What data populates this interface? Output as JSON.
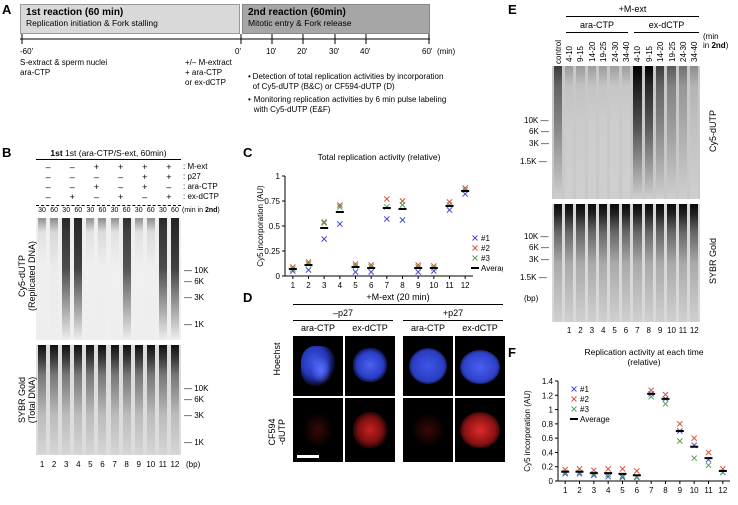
{
  "panels": {
    "a": "A",
    "b": "B",
    "c": "C",
    "d": "D",
    "e": "E",
    "f": "F"
  },
  "panelA": {
    "box1_title": "1st reaction (60 min)",
    "box1_sub": "Replication initiation & Fork stalling",
    "box2_title": "2nd reaction (60min)",
    "box2_sub": "Mitotic entry & Fork release",
    "ticks": [
      "-60'",
      "0'",
      "10'",
      "20'",
      "30'",
      "40'",
      "60'"
    ],
    "unit": "(min)",
    "left_note": [
      "S-extract & sperm nuclei",
      "ara-CTP"
    ],
    "mid_note": [
      "+/– M-extract",
      "+ ara-CTP",
      "or ex-dCTP"
    ],
    "bullets": [
      "Detection of total replication activities by incorporation of Cy5-dUTP (B&C) or CF594-dUTP (D)",
      "Monitoring replication activities by 6 min pulse labeling with Cy5-dUTP (E&F)"
    ],
    "colors": {
      "box1": "#d9d9d9",
      "box2": "#a6a6a6"
    }
  },
  "panelB": {
    "header": "1st (ara-CTP/S-ext, 60min)",
    "row_labels": [
      ": M-ext",
      ": p27",
      ": ara-CTP",
      ": ex-dCTP"
    ],
    "rows": [
      [
        "–",
        "–",
        "+",
        "+",
        "+",
        "+"
      ],
      [
        "–",
        "–",
        "–",
        "–",
        "+",
        "+"
      ],
      [
        "–",
        "–",
        "+",
        "–",
        "+",
        "–"
      ],
      [
        "–",
        "+",
        "–",
        "+",
        "–",
        "+"
      ]
    ],
    "times": [
      "30",
      "60",
      "30",
      "60",
      "30",
      "60",
      "30",
      "60",
      "30",
      "60",
      "30",
      "60"
    ],
    "time_unit_pre": "(min in ",
    "time_unit_bold": "2nd",
    "time_unit_post": ")",
    "gel1_label": [
      "Cy5-dUTP",
      "(Replicated DNA)"
    ],
    "gel2_label": [
      "SYBR Gold",
      "(Total DNA)"
    ],
    "markers1": [
      "10K",
      "6K",
      "3K",
      "1K"
    ],
    "markers2": [
      "10K",
      "6K",
      "3K",
      "1K"
    ],
    "lanes": [
      "1",
      "2",
      "3",
      "4",
      "5",
      "6",
      "7",
      "8",
      "9",
      "10",
      "11",
      "12"
    ],
    "bp": "(bp)",
    "signal": [
      0.05,
      0.1,
      0.9,
      0.95,
      0.05,
      0.08,
      0.05,
      0.85,
      0.05,
      0.08,
      0.9,
      0.95
    ]
  },
  "chart_data": [
    {
      "id": "C",
      "type": "scatter",
      "title": "Total replication activity (relative)",
      "ylabel": "Cy5 incorporation (AU)",
      "xlabel": "",
      "categories": [
        "1",
        "2",
        "3",
        "4",
        "5",
        "6",
        "7",
        "8",
        "9",
        "10",
        "11",
        "12"
      ],
      "ylim": [
        0,
        1
      ],
      "yticks": [
        "0",
        "0.25",
        "0.5",
        "0.75",
        "1"
      ],
      "legend_position": "right",
      "series": [
        {
          "name": "#1",
          "color": "#4a4ad8",
          "marker": "x",
          "values": [
            0.05,
            0.06,
            0.37,
            0.52,
            0.04,
            0.04,
            0.57,
            0.56,
            0.04,
            0.05,
            0.66,
            0.82
          ]
        },
        {
          "name": "#2",
          "color": "#d94f3d",
          "marker": "x",
          "values": [
            0.09,
            0.14,
            0.54,
            0.71,
            0.12,
            0.11,
            0.77,
            0.75,
            0.11,
            0.1,
            0.74,
            0.88
          ]
        },
        {
          "name": "#3",
          "color": "#5aa05a",
          "marker": "x",
          "values": [
            0.07,
            0.12,
            0.53,
            0.69,
            0.1,
            0.09,
            0.69,
            0.71,
            0.09,
            0.08,
            0.71,
            0.86
          ]
        },
        {
          "name": "Average",
          "color": "#000000",
          "marker": "dash",
          "values": [
            0.07,
            0.11,
            0.48,
            0.64,
            0.09,
            0.08,
            0.68,
            0.67,
            0.08,
            0.08,
            0.7,
            0.85
          ]
        }
      ]
    },
    {
      "id": "F",
      "type": "scatter",
      "title": "Replication activity at each time (relative)",
      "ylabel": "Cy5 incorporation (AU)",
      "xlabel": "",
      "categories": [
        "1",
        "2",
        "3",
        "4",
        "5",
        "6",
        "7",
        "8",
        "9",
        "10",
        "11",
        "12"
      ],
      "ylim": [
        0,
        1.4
      ],
      "yticks": [
        "0",
        "0.2",
        "0.4",
        "0.6",
        "0.8",
        "1",
        "1.2",
        "1.4"
      ],
      "legend_position": "top-left",
      "series": [
        {
          "name": "#1",
          "color": "#4a4ad8",
          "marker": "x",
          "values": [
            0.1,
            0.1,
            0.08,
            0.06,
            0.05,
            0.05,
            1.22,
            1.15,
            0.7,
            0.5,
            0.3,
            0.12
          ]
        },
        {
          "name": "#2",
          "color": "#d94f3d",
          "marker": "x",
          "values": [
            0.16,
            0.17,
            0.15,
            0.17,
            0.17,
            0.14,
            1.27,
            1.21,
            0.8,
            0.6,
            0.4,
            0.17
          ]
        },
        {
          "name": "#3",
          "color": "#5aa05a",
          "marker": "x",
          "values": [
            0.12,
            0.12,
            0.1,
            0.09,
            0.07,
            0.06,
            1.18,
            1.08,
            0.56,
            0.32,
            0.22,
            0.12
          ]
        },
        {
          "name": "Average",
          "color": "#000000",
          "marker": "dash",
          "values": [
            0.13,
            0.13,
            0.11,
            0.11,
            0.1,
            0.08,
            1.22,
            1.15,
            0.7,
            0.48,
            0.32,
            0.14
          ]
        }
      ]
    }
  ],
  "panelD": {
    "header": "+M-ext (20 min)",
    "groups": [
      "–p27",
      "+p27"
    ],
    "cols": [
      "ara-CTP",
      "ex-dCTP",
      "ara-CTP",
      "ex-dCTP"
    ],
    "row_labels": [
      "Hoechst",
      [
        "CF594",
        "-dUTP"
      ]
    ],
    "colors": {
      "blue": "#3a4fe0",
      "red": "#d02020"
    }
  },
  "panelE": {
    "header": "+M-ext",
    "groups": [
      "ara-CTP",
      "ex-dCTP"
    ],
    "cols": [
      "control",
      "4-10",
      "9-15",
      "14-20",
      "19-25",
      "24-30",
      "34-40",
      "4-10",
      "9-15",
      "14-20",
      "19-25",
      "24-30",
      "34-40"
    ],
    "unit": [
      "(min",
      "in ",
      "2nd",
      ")"
    ],
    "gel1_label": "Cy5-dUTP",
    "gel2_label": "SYBR Gold",
    "markers1": [
      "10K",
      "6K",
      "3K",
      "1.5K"
    ],
    "markers2": [
      "10K",
      "6K",
      "3K",
      "1.5K"
    ],
    "lanes": [
      "1",
      "2",
      "3",
      "4",
      "5",
      "6",
      "7",
      "8",
      "9",
      "10",
      "11",
      "12"
    ],
    "bp": "(bp)",
    "signal": [
      0.55,
      0.08,
      0.08,
      0.07,
      0.07,
      0.06,
      0.06,
      0.9,
      0.85,
      0.55,
      0.4,
      0.3,
      0.15
    ]
  }
}
